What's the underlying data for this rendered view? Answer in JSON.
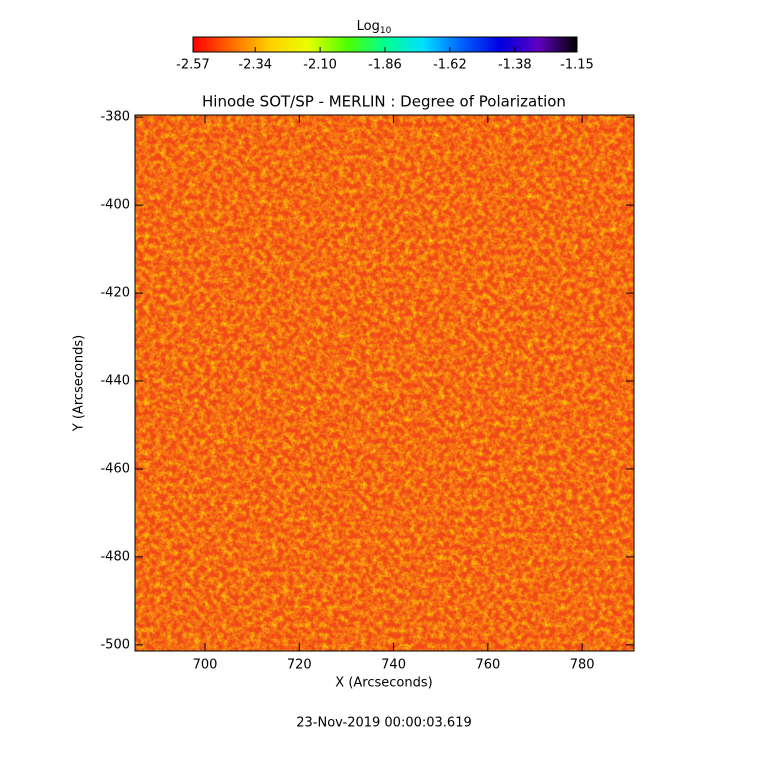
{
  "chart_data": {
    "type": "heatmap",
    "title": "Hinode SOT/SP - MERLIN : Degree of Polarization",
    "xlabel": "X (Arcseconds)",
    "ylabel": "Y (Arcseconds)",
    "footer": "23-Nov-2019 00:00:03.619",
    "xlim": [
      685.15,
      791.0
    ],
    "ylim": [
      -501.4,
      -379.5
    ],
    "xticks": [
      700,
      720,
      740,
      760,
      780
    ],
    "yticks": [
      -380,
      -400,
      -420,
      -440,
      -460,
      -480,
      -500
    ],
    "colorbar": {
      "label": "Log",
      "label_subscript": "10",
      "clim": [
        -2.57,
        -1.15
      ],
      "ticks": [
        -2.57,
        -2.34,
        -2.1,
        -1.86,
        -1.62,
        -1.38,
        -1.15
      ],
      "colors": [
        "#ff0000",
        "#ff6a00",
        "#ffd000",
        "#e8ff00",
        "#50ff00",
        "#00ff90",
        "#00e0ff",
        "#0060ff",
        "#0000e0",
        "#6000c0",
        "#000000"
      ]
    }
  }
}
